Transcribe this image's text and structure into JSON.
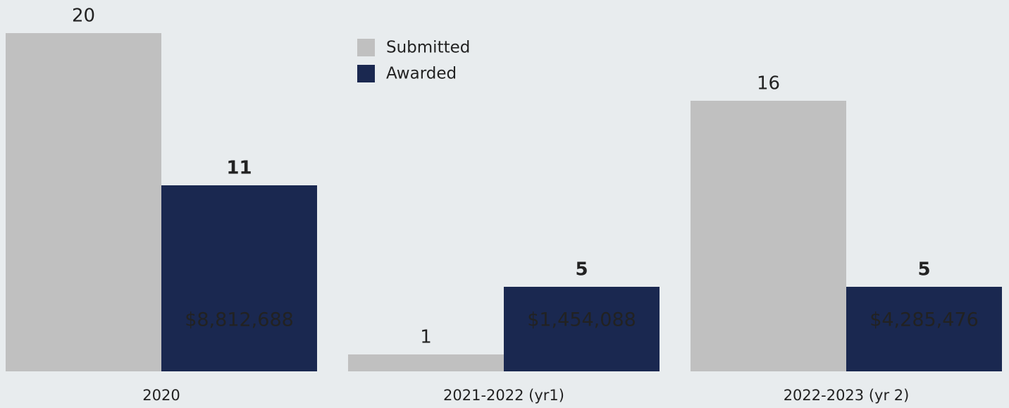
{
  "chart_data": {
    "type": "bar",
    "categories": [
      "2020",
      "2021-2022 (yr1)",
      "2022-2023 (yr 2)"
    ],
    "series": [
      {
        "name": "Submitted",
        "color": "#c0c0c0",
        "values": [
          20,
          1,
          16
        ]
      },
      {
        "name": "Awarded",
        "color": "#1a2850",
        "values": [
          11,
          5,
          5
        ]
      }
    ],
    "annotations": [
      "$8,812,688",
      "$1,454,088",
      "$4,285,476"
    ],
    "ylim": [
      0,
      20
    ],
    "legend": "top-center"
  }
}
